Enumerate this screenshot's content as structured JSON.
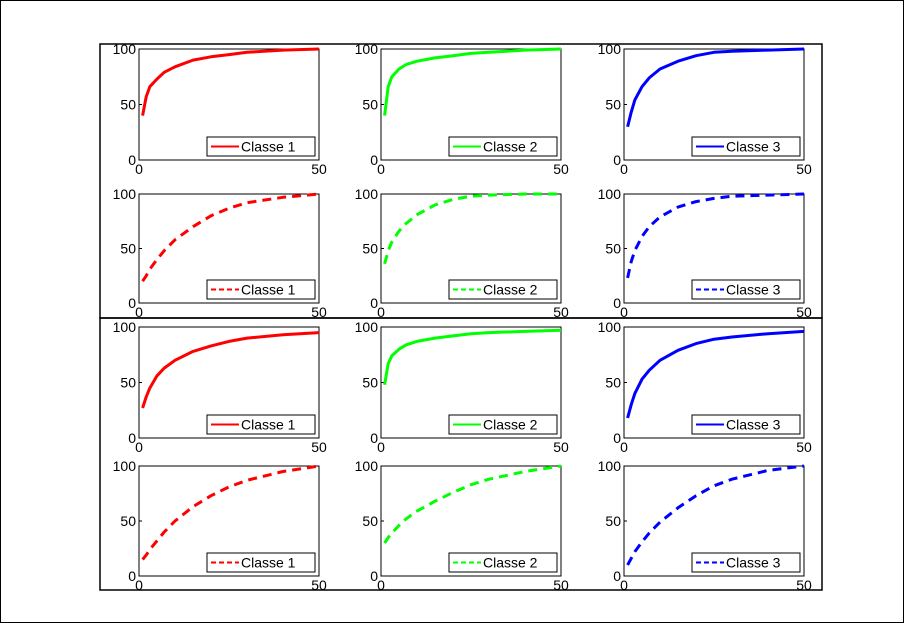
{
  "colors": {
    "class1": "#ff0000",
    "class2": "#00ff00",
    "class3": "#0000ff"
  },
  "chart_data": [
    {
      "type": "line",
      "xlim": [
        0,
        50
      ],
      "ylim": [
        0,
        100
      ],
      "xticks": [
        "0",
        "50"
      ],
      "yticks": [
        "0",
        "50",
        "100"
      ],
      "grid": false,
      "legend_position": "bottom-right",
      "color": "#ff0000",
      "line_style": "solid",
      "series": [
        {
          "name": "Classe 1",
          "x": [
            1,
            2,
            3,
            5,
            7,
            10,
            15,
            20,
            25,
            30,
            40,
            50
          ],
          "values": [
            40,
            57,
            66,
            73,
            79,
            84,
            90,
            93,
            95,
            97,
            99,
            100
          ]
        }
      ]
    },
    {
      "type": "line",
      "xlim": [
        0,
        50
      ],
      "ylim": [
        0,
        100
      ],
      "xticks": [
        "0",
        "50"
      ],
      "yticks": [
        "0",
        "50",
        "100"
      ],
      "grid": false,
      "legend_position": "bottom-right",
      "color": "#00ff00",
      "line_style": "solid",
      "series": [
        {
          "name": "Classe 2",
          "x": [
            1,
            2,
            3,
            5,
            7,
            10,
            15,
            20,
            25,
            30,
            40,
            50
          ],
          "values": [
            40,
            66,
            75,
            82,
            86,
            89,
            92,
            94,
            96,
            97,
            99,
            100
          ]
        }
      ]
    },
    {
      "type": "line",
      "xlim": [
        0,
        50
      ],
      "ylim": [
        0,
        100
      ],
      "xticks": [
        "0",
        "50"
      ],
      "yticks": [
        "0",
        "50",
        "100"
      ],
      "grid": false,
      "legend_position": "bottom-right",
      "color": "#0000ff",
      "line_style": "solid",
      "series": [
        {
          "name": "Classe 3",
          "x": [
            1,
            2,
            3,
            5,
            7,
            10,
            15,
            20,
            25,
            30,
            40,
            50
          ],
          "values": [
            30,
            43,
            54,
            66,
            74,
            82,
            89,
            94,
            97,
            98,
            99,
            100
          ]
        }
      ]
    },
    {
      "type": "line",
      "xlim": [
        0,
        50
      ],
      "ylim": [
        0,
        100
      ],
      "xticks": [
        "0",
        "50"
      ],
      "yticks": [
        "0",
        "50",
        "100"
      ],
      "grid": false,
      "legend_position": "bottom-right",
      "color": "#ff0000",
      "line_style": "dashed",
      "series": [
        {
          "name": "Classe 1",
          "x": [
            1,
            2,
            3,
            5,
            7,
            10,
            15,
            20,
            25,
            30,
            40,
            50
          ],
          "values": [
            20,
            25,
            31,
            40,
            48,
            58,
            70,
            80,
            87,
            92,
            97,
            100
          ]
        }
      ]
    },
    {
      "type": "line",
      "xlim": [
        0,
        50
      ],
      "ylim": [
        0,
        100
      ],
      "xticks": [
        "0",
        "50"
      ],
      "yticks": [
        "0",
        "50",
        "100"
      ],
      "grid": false,
      "legend_position": "bottom-right",
      "color": "#00ff00",
      "line_style": "dashed",
      "series": [
        {
          "name": "Classe 2",
          "x": [
            1,
            2,
            3,
            5,
            7,
            10,
            15,
            20,
            25,
            30,
            40,
            50
          ],
          "values": [
            36,
            48,
            56,
            66,
            73,
            81,
            90,
            95,
            98,
            99,
            100,
            100
          ]
        }
      ]
    },
    {
      "type": "line",
      "xlim": [
        0,
        50
      ],
      "ylim": [
        0,
        100
      ],
      "xticks": [
        "0",
        "50"
      ],
      "yticks": [
        "0",
        "50",
        "100"
      ],
      "grid": false,
      "legend_position": "bottom-right",
      "color": "#0000ff",
      "line_style": "dashed",
      "series": [
        {
          "name": "Classe 3",
          "x": [
            1,
            2,
            3,
            5,
            7,
            10,
            15,
            20,
            25,
            30,
            40,
            50
          ],
          "values": [
            23,
            38,
            48,
            61,
            70,
            79,
            88,
            93,
            96,
            98,
            99,
            100
          ]
        }
      ]
    },
    {
      "type": "line",
      "xlim": [
        0,
        50
      ],
      "ylim": [
        0,
        100
      ],
      "xticks": [
        "0",
        "50"
      ],
      "yticks": [
        "0",
        "50",
        "100"
      ],
      "grid": false,
      "legend_position": "bottom-right",
      "color": "#ff0000",
      "line_style": "solid",
      "series": [
        {
          "name": "Classe 1",
          "x": [
            1,
            2,
            3,
            5,
            7,
            10,
            15,
            20,
            25,
            30,
            40,
            50
          ],
          "values": [
            27,
            37,
            45,
            56,
            63,
            70,
            78,
            83,
            87,
            90,
            93,
            95
          ]
        }
      ]
    },
    {
      "type": "line",
      "xlim": [
        0,
        50
      ],
      "ylim": [
        0,
        100
      ],
      "xticks": [
        "0",
        "50"
      ],
      "yticks": [
        "0",
        "50",
        "100"
      ],
      "grid": false,
      "legend_position": "bottom-right",
      "color": "#00ff00",
      "line_style": "solid",
      "series": [
        {
          "name": "Classe 2",
          "x": [
            1,
            2,
            3,
            5,
            7,
            10,
            15,
            20,
            25,
            30,
            40,
            50
          ],
          "values": [
            48,
            67,
            74,
            80,
            84,
            87,
            90,
            92,
            94,
            95,
            96,
            97
          ]
        }
      ]
    },
    {
      "type": "line",
      "xlim": [
        0,
        50
      ],
      "ylim": [
        0,
        100
      ],
      "xticks": [
        "0",
        "50"
      ],
      "yticks": [
        "0",
        "50",
        "100"
      ],
      "grid": false,
      "legend_position": "bottom-right",
      "color": "#0000ff",
      "line_style": "solid",
      "series": [
        {
          "name": "Classe 3",
          "x": [
            1,
            2,
            3,
            5,
            7,
            10,
            15,
            20,
            25,
            30,
            40,
            50
          ],
          "values": [
            18,
            30,
            40,
            53,
            61,
            70,
            79,
            85,
            89,
            91,
            94,
            96
          ]
        }
      ]
    },
    {
      "type": "line",
      "xlim": [
        0,
        50
      ],
      "ylim": [
        0,
        100
      ],
      "xticks": [
        "0",
        "50"
      ],
      "yticks": [
        "0",
        "50",
        "100"
      ],
      "grid": false,
      "legend_position": "bottom-right",
      "color": "#ff0000",
      "line_style": "dashed",
      "series": [
        {
          "name": "Classe 1",
          "x": [
            1,
            2,
            3,
            5,
            7,
            10,
            15,
            20,
            25,
            30,
            40,
            50
          ],
          "values": [
            15,
            19,
            24,
            32,
            40,
            50,
            63,
            73,
            81,
            87,
            95,
            100
          ]
        }
      ]
    },
    {
      "type": "line",
      "xlim": [
        0,
        50
      ],
      "ylim": [
        0,
        100
      ],
      "xticks": [
        "0",
        "50"
      ],
      "yticks": [
        "0",
        "50",
        "100"
      ],
      "grid": false,
      "legend_position": "bottom-right",
      "color": "#00ff00",
      "line_style": "dashed",
      "series": [
        {
          "name": "Classe 2",
          "x": [
            1,
            2,
            3,
            5,
            7,
            10,
            15,
            20,
            25,
            30,
            40,
            50
          ],
          "values": [
            30,
            35,
            39,
            46,
            52,
            59,
            68,
            76,
            83,
            88,
            95,
            100
          ]
        }
      ]
    },
    {
      "type": "line",
      "xlim": [
        0,
        50
      ],
      "ylim": [
        0,
        100
      ],
      "xticks": [
        "0",
        "50"
      ],
      "yticks": [
        "0",
        "50",
        "100"
      ],
      "grid": false,
      "legend_position": "bottom-right",
      "color": "#0000ff",
      "line_style": "dashed",
      "series": [
        {
          "name": "Classe 3",
          "x": [
            1,
            2,
            3,
            5,
            7,
            10,
            15,
            20,
            25,
            30,
            40,
            50
          ],
          "values": [
            10,
            16,
            22,
            31,
            39,
            49,
            62,
            73,
            82,
            88,
            96,
            100
          ]
        }
      ]
    }
  ]
}
